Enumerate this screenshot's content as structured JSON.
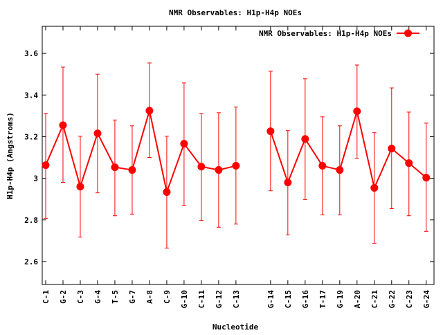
{
  "chart_data": {
    "type": "line",
    "title": "NMR Observables: H1p-H4p NOEs",
    "xlabel": "Nucleotide",
    "ylabel": "H1p-H4p (Angstroms)",
    "ylim": [
      2.49,
      3.73
    ],
    "xlim": [
      0.8,
      23.45
    ],
    "yticks": [
      2.6,
      2.8,
      3,
      3.2,
      3.4,
      3.6
    ],
    "ytick_labels": [
      "2.6",
      "2.8",
      "3",
      "3.2",
      "3.4",
      "3.6"
    ],
    "legend": {
      "label": "NMR Observables: H1p-H4p NOEs",
      "position": "top-right"
    },
    "color": "#ff0000",
    "grid": false,
    "series": [
      {
        "name": "NMR Observables: H1p-H4p NOEs",
        "segments": [
          [
            {
              "x": 1,
              "label": "C-1",
              "y": 3.063,
              "ylow": 2.808,
              "yhigh": 3.312
            },
            {
              "x": 2,
              "label": "G-2",
              "y": 3.255,
              "ylow": 2.98,
              "yhigh": 3.534
            },
            {
              "x": 3,
              "label": "C-3",
              "y": 2.96,
              "ylow": 2.718,
              "yhigh": 3.202
            },
            {
              "x": 4,
              "label": "G-4",
              "y": 3.216,
              "ylow": 2.93,
              "yhigh": 3.5
            },
            {
              "x": 5,
              "label": "T-5",
              "y": 3.053,
              "ylow": 2.82,
              "yhigh": 3.28
            },
            {
              "x": 6,
              "label": "G-7",
              "y": 3.04,
              "ylow": 2.828,
              "yhigh": 3.252
            },
            {
              "x": 7,
              "label": "A-8",
              "y": 3.325,
              "ylow": 3.1,
              "yhigh": 3.554
            },
            {
              "x": 8,
              "label": "C-9",
              "y": 2.934,
              "ylow": 2.665,
              "yhigh": 3.202
            },
            {
              "x": 9,
              "label": "G-10",
              "y": 3.166,
              "ylow": 2.87,
              "yhigh": 3.458
            },
            {
              "x": 10,
              "label": "C-11",
              "y": 3.056,
              "ylow": 2.798,
              "yhigh": 3.312
            },
            {
              "x": 11,
              "label": "G-12",
              "y": 3.04,
              "ylow": 2.765,
              "yhigh": 3.315
            },
            {
              "x": 12,
              "label": "C-13",
              "y": 3.06,
              "ylow": 2.78,
              "yhigh": 3.342
            }
          ],
          [
            {
              "x": 14,
              "label": "G-14",
              "y": 3.226,
              "ylow": 2.94,
              "yhigh": 3.514
            },
            {
              "x": 15,
              "label": "C-15",
              "y": 2.98,
              "ylow": 2.728,
              "yhigh": 3.229
            },
            {
              "x": 16,
              "label": "G-16",
              "y": 3.189,
              "ylow": 2.897,
              "yhigh": 3.478
            },
            {
              "x": 17,
              "label": "T-17",
              "y": 3.06,
              "ylow": 2.824,
              "yhigh": 3.295
            },
            {
              "x": 18,
              "label": "G-19",
              "y": 3.04,
              "ylow": 2.824,
              "yhigh": 3.252
            },
            {
              "x": 19,
              "label": "A-20",
              "y": 3.322,
              "ylow": 3.096,
              "yhigh": 3.544
            },
            {
              "x": 20,
              "label": "C-21",
              "y": 2.954,
              "ylow": 2.688,
              "yhigh": 3.219
            },
            {
              "x": 21,
              "label": "G-22",
              "y": 3.143,
              "ylow": 2.854,
              "yhigh": 3.434
            },
            {
              "x": 22,
              "label": "C-23",
              "y": 3.073,
              "ylow": 2.82,
              "yhigh": 3.318
            },
            {
              "x": 23,
              "label": "G-24",
              "y": 3.003,
              "ylow": 2.745,
              "yhigh": 3.265
            }
          ]
        ]
      }
    ]
  }
}
